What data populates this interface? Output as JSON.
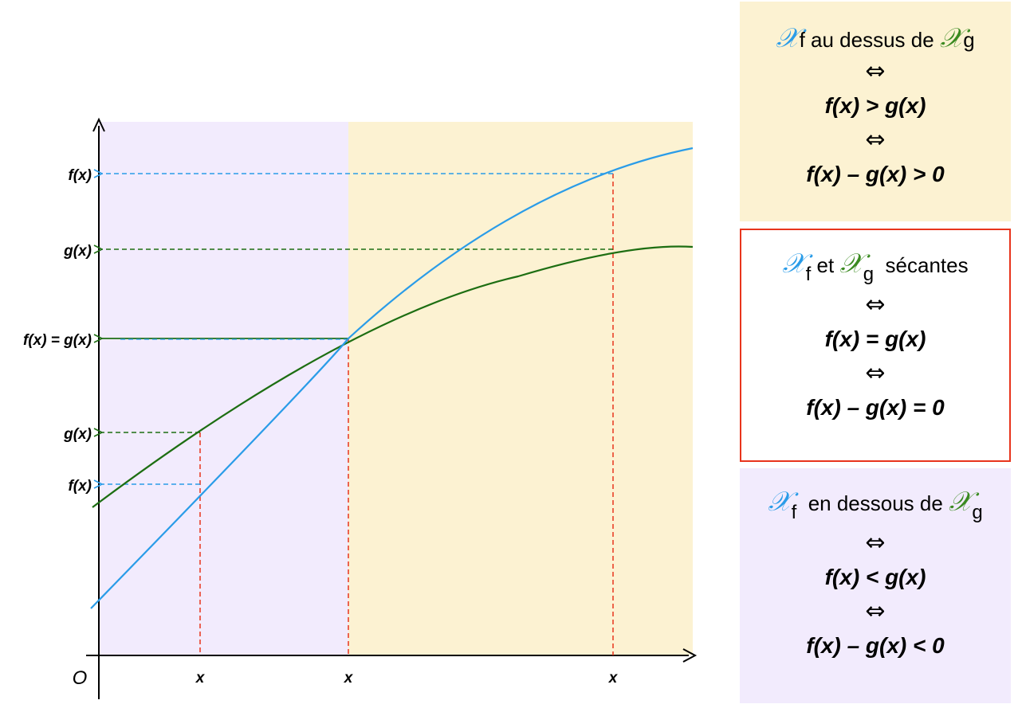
{
  "colors": {
    "f_curve": "#2a9ce8",
    "g_curve": "#1d6e12",
    "guides": "#e8341c",
    "region_f_below": "#f2ebfd",
    "region_f_above": "#fcf2d2"
  },
  "axes": {
    "origin": "O",
    "x_ticks": [
      "x",
      "x",
      "x"
    ]
  },
  "y_labels": {
    "right_f": "f(x)",
    "right_g": "g(x)",
    "mid_eq": "f(x) = g(x)",
    "left_g": "g(x)",
    "left_f": "f(x)"
  },
  "panels": {
    "above": {
      "symbol_f": "𝒳",
      "sub_f": "f",
      "text": " au dessus de ",
      "symbol_g": "𝒳",
      "sub_g": "g",
      "iff": "⇔",
      "line1": "f(x) > g(x)",
      "line2": "f(x) – g(x) > 0"
    },
    "secant": {
      "symbol_f": "𝒳",
      "sub_f": "f",
      "text": " et ",
      "symbol_g": "𝒳",
      "sub_g": "g",
      "text2": "  sécantes",
      "iff": "⇔",
      "line1": "f(x) = g(x)",
      "line2": "f(x) – g(x) = 0"
    },
    "below": {
      "symbol_f": "𝒳",
      "sub_f": "f",
      "text": "  en dessous de ",
      "symbol_g": "𝒳",
      "sub_g": "g",
      "iff": "⇔",
      "line1": "f(x) < g(x)",
      "line2": "f(x) – g(x) < 0"
    }
  }
}
